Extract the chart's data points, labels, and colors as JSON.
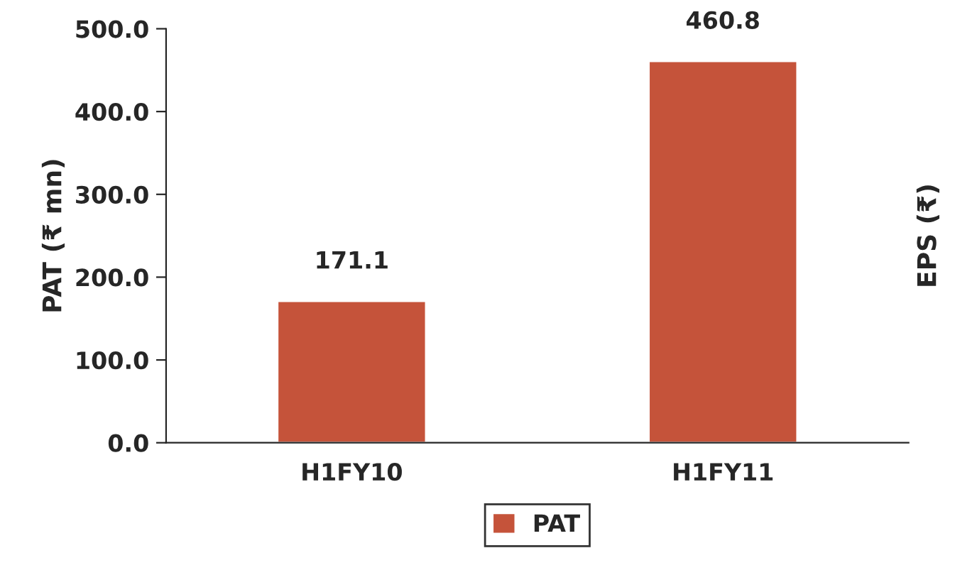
{
  "chart_data": {
    "type": "bar",
    "ylabel": "PAT (₹ mn)",
    "y2label": "EPS (₹)",
    "categories": [
      "H1FY10",
      "H1FY11"
    ],
    "series": [
      {
        "name": "PAT",
        "color": "#c5533a",
        "values": [
          171.1,
          460.8
        ]
      }
    ],
    "ylim": [
      0,
      500
    ],
    "yticks": [
      {
        "value": 0,
        "label": "0.0"
      },
      {
        "value": 100,
        "label": "100.0"
      },
      {
        "value": 200,
        "label": "200.0"
      },
      {
        "value": 300,
        "label": "300.0"
      },
      {
        "value": 400,
        "label": "400.0"
      },
      {
        "value": 500,
        "label": "500.0"
      }
    ],
    "data_labels": true,
    "legend": "bottom",
    "grid": false
  }
}
